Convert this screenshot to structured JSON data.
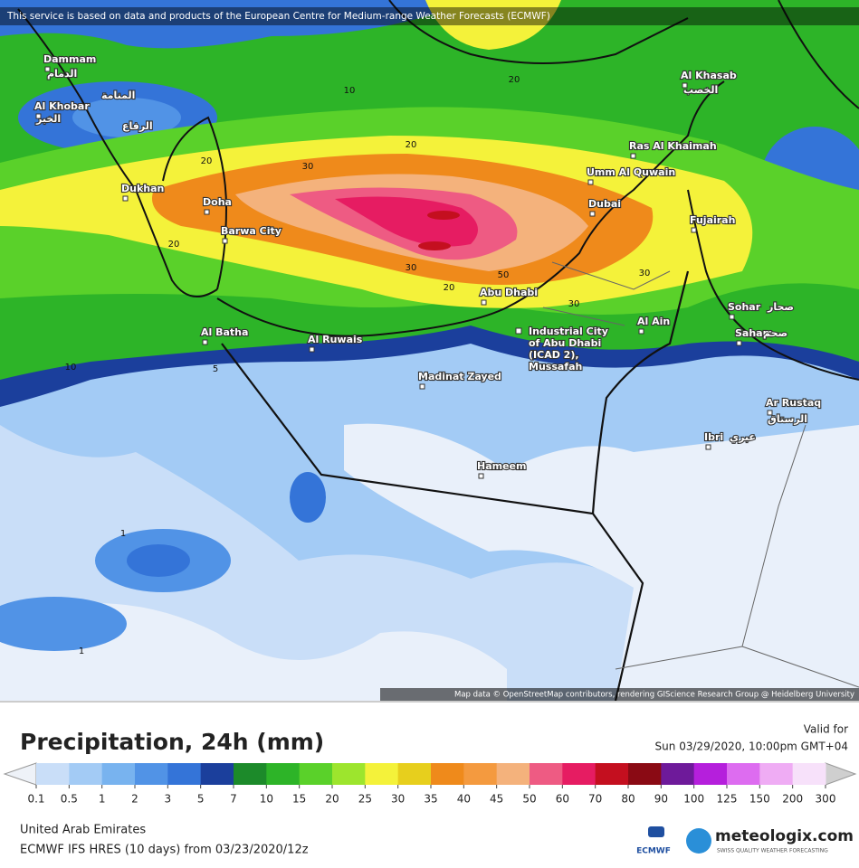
{
  "header": {
    "attribution": "This service is based on data and products of the European Centre for Medium-range Weather Forecasts (ECMWF)"
  },
  "map": {
    "places": [
      "Dammam",
      "الدمام",
      "Al Khobar",
      "الخبر",
      "المنامة",
      "الرفاع",
      "Dukhan",
      "Doha",
      "Barwa City",
      "Al Batha",
      "Al Ruwais",
      "Abu Dhabi",
      "Industrial City of Abu Dhabi (ICAD 2), Mussafah",
      "Madinat Zayed",
      "Hameem",
      "Al Ain",
      "Dubai",
      "Umm Al Quwain",
      "Ras Al Khaimah",
      "Al Khasab",
      "الخصب",
      "Fujairah",
      "Sohar",
      "صحار",
      "Saham",
      "صحم",
      "Ar Rustaq",
      "الرستاق",
      "Ibri",
      "عبري"
    ],
    "contour_labels": [
      "10",
      "20",
      "30",
      "20",
      "30",
      "20",
      "50",
      "30",
      "30",
      "20",
      "20",
      "10",
      "5",
      "1",
      "1"
    ],
    "credits": "Map data © OpenStreetMap contributors, rendering GIScience Research Group @ Heidelberg University"
  },
  "legend": {
    "title": "Precipitation, 24h (mm)",
    "valid_label": "Valid for",
    "valid_time": "Sun 03/29/2020, 10:00pm GMT+04",
    "ticks": [
      0.1,
      0.5,
      1,
      2,
      3,
      5,
      7,
      10,
      15,
      20,
      25,
      30,
      35,
      40,
      45,
      50,
      60,
      70,
      80,
      90,
      100,
      125,
      150,
      200,
      300
    ],
    "colors": [
      "#c9def8",
      "#a3cbf5",
      "#78b3ef",
      "#5193e6",
      "#3474d8",
      "#1b3f9c",
      "#1c8a2a",
      "#2db428",
      "#5ad12a",
      "#9de52d",
      "#f4f23a",
      "#e7cf1d",
      "#ef8a1b",
      "#f49a3f",
      "#f4b27c",
      "#ee5b83",
      "#e61c62",
      "#c40f1f",
      "#8a0a14",
      "#6e1a9a",
      "#b51fdc",
      "#dd6cf0",
      "#efacf4",
      "#f7e1fa"
    ],
    "under_color": "#eef2f8",
    "over_color": "#cfcfcf"
  },
  "footer": {
    "region": "United Arab Emirates",
    "model": "ECMWF IFS HRES (10 days) from 03/23/2020/12z",
    "ecmwf": "ECMWF",
    "brand": "meteologix.com",
    "tagline": "SWISS QUALITY WEATHER FORECASTING"
  }
}
